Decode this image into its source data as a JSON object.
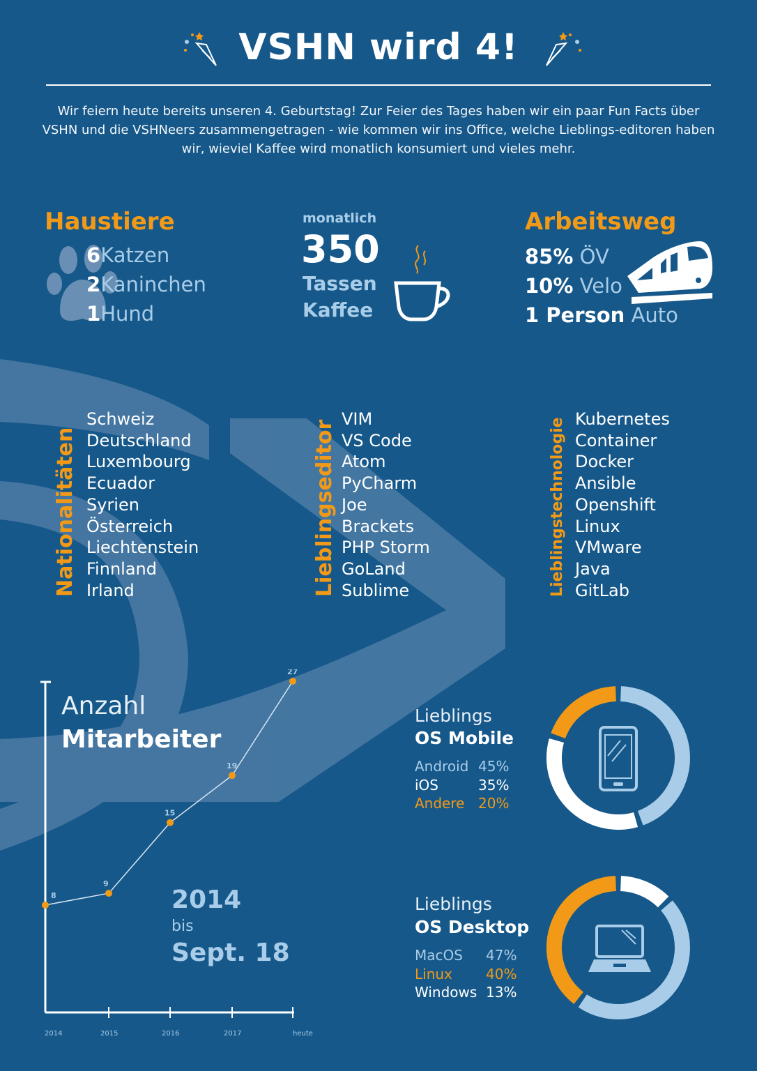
{
  "header": {
    "title": "VSHN wird 4!",
    "intro": "Wir feiern heute bereits unseren 4. Geburtstag! Zur Feier des Tages haben wir ein paar Fun Facts über VSHN und die VSHNeers zusammengetragen - wie kommen wir ins Office, welche Lieblings-editoren haben wir, wieviel Kaffee wird monatlich konsumiert und vieles mehr."
  },
  "pets": {
    "heading": "Haustiere",
    "items": [
      {
        "count": "6",
        "label": "Katzen"
      },
      {
        "count": "2",
        "label": "Kaninchen"
      },
      {
        "count": "1",
        "label": "Hund"
      }
    ]
  },
  "coffee": {
    "pre": "monatlich",
    "number": "350",
    "line1": "Tassen",
    "line2": "Kaffee"
  },
  "commute": {
    "heading": "Arbeitsweg",
    "items": [
      {
        "value": "85%",
        "label": "ÖV"
      },
      {
        "value": "10%",
        "label": "Velo"
      },
      {
        "value": "1 Person",
        "label": "Auto"
      }
    ]
  },
  "lists": {
    "nationalities": {
      "heading": "Nationalitäten",
      "items": [
        "Schweiz",
        "Deutschland",
        "Luxembourg",
        "Ecuador",
        "Syrien",
        "Österreich",
        "Liechtenstein",
        "Finnland",
        "Irland"
      ]
    },
    "editors": {
      "heading": "Lieblingseditor",
      "items": [
        "VIM",
        "VS Code",
        "Atom",
        "PyCharm",
        "Joe",
        "Brackets",
        "PHP Storm",
        "GoLand",
        "Sublime"
      ]
    },
    "technologies": {
      "heading": "Lieblingstechnologie",
      "items": [
        "Kubernetes",
        "Container",
        "Docker",
        "Ansible",
        "Openshift",
        "Linux",
        "VMware",
        "Java",
        "GitLab"
      ]
    }
  },
  "employees": {
    "title_line1": "Anzahl",
    "title_line2": "Mitarbeiter",
    "range_from": "2014",
    "range_mid": "bis",
    "range_to": "Sept. 18"
  },
  "os_mobile": {
    "title_line1": "Lieblings",
    "title_line2": "OS Mobile",
    "items": [
      {
        "name": "Android",
        "pct": "45%",
        "value": 45,
        "color": "#a9cde8"
      },
      {
        "name": "iOS",
        "pct": "35%",
        "value": 35,
        "color": "#ffffff"
      },
      {
        "name": "Andere",
        "pct": "20%",
        "value": 20,
        "color": "#f29a17"
      }
    ]
  },
  "os_desktop": {
    "title_line1": "Lieblings",
    "title_line2": "OS Desktop",
    "items": [
      {
        "name": "MacOS",
        "pct": "47%",
        "value": 47,
        "color": "#a9cde8"
      },
      {
        "name": "Linux",
        "pct": "40%",
        "value": 40,
        "color": "#f29a17"
      },
      {
        "name": "Windows",
        "pct": "13%",
        "value": 13,
        "color": "#ffffff"
      }
    ]
  },
  "chart_data": {
    "type": "line",
    "x": [
      "2014",
      "2015",
      "2016",
      "2017",
      "heute"
    ],
    "series": [
      {
        "values": [
          8,
          9,
          15,
          19,
          27
        ]
      }
    ],
    "xlabel": "",
    "ylabel": ""
  },
  "colors": {
    "background": "#16588a",
    "accent": "#f29a17",
    "light_blue": "#a9cde8"
  }
}
